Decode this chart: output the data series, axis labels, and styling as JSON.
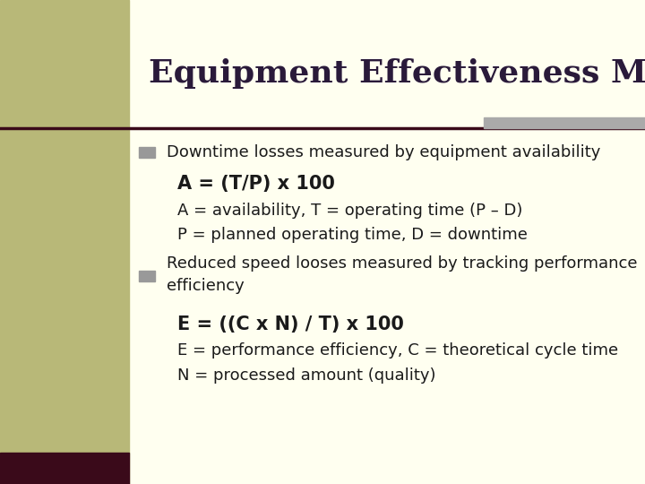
{
  "title": "Equipment Effectiveness Matrix",
  "title_fontsize": 26,
  "title_color": "#2a1a3a",
  "bg_color": "#fffff0",
  "left_bar_color": "#b8b878",
  "left_bar_dark": "#3a0a1a",
  "separator_color": "#3a0a1a",
  "top_bar_color": "#aaaaaa",
  "bullet_color": "#999999",
  "bullet1_header": "Downtime losses measured by equipment availability",
  "bullet1_formula": "A = (T/P) x 100",
  "bullet1_line2": "A = availability, T = operating time (P – D)",
  "bullet1_line3": "P = planned operating time, D = downtime",
  "bullet2_header_line1": "Reduced speed looses measured by tracking performance",
  "bullet2_header_line2": "efficiency",
  "bullet2_formula": "E = ((C x N) / T) x 100",
  "bullet2_line2": "E = performance efficiency, C = theoretical cycle time",
  "bullet2_line3": "N = processed amount (quality)",
  "body_fontsize": 13,
  "formula_fontsize": 15,
  "header_fontsize": 13,
  "text_color": "#1a1a1a"
}
